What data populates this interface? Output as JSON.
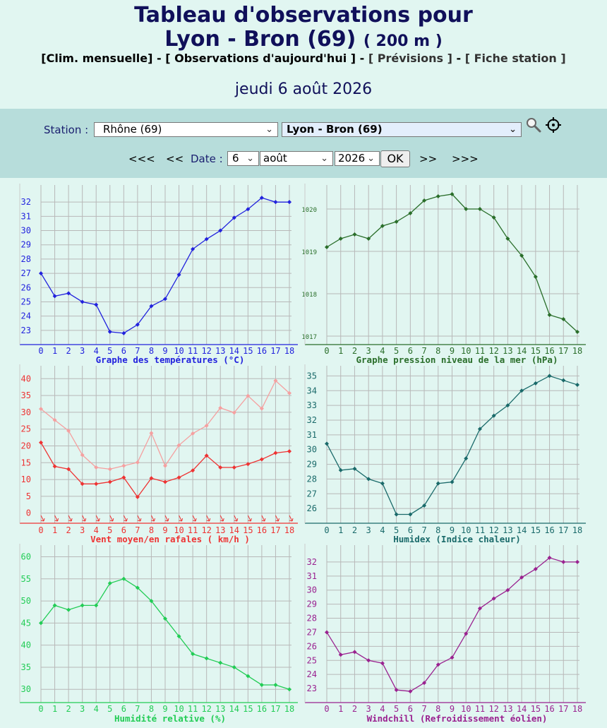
{
  "header": {
    "title_line1": "Tableau d'observations pour",
    "title_station": "Lyon - Bron (69)",
    "title_altitude": "( 200 m )",
    "links": [
      {
        "label": "[Clim. mensuelle]"
      },
      {
        "label": "[ Observations d'aujourd'hui ]"
      },
      {
        "label": "[ Prévisions ]"
      },
      {
        "label": "[ Fiche station ]"
      }
    ],
    "link_separator": "-",
    "date": "jeudi 6 août 2026"
  },
  "controls": {
    "station_label": "Station :",
    "department_select": "Rhône (69)",
    "station_select": "Lyon - Bron (69)",
    "search_icon": "magnifier-icon",
    "locate_icon": "crosshair-icon",
    "nav_prev_far": "<<<",
    "nav_prev": "<<",
    "date_label": "Date :",
    "day_select": "6",
    "month_select": "août",
    "year_select": "2026",
    "ok_label": "OK",
    "nav_next": ">>",
    "nav_next_far": ">>>"
  },
  "chart_data": [
    {
      "type": "line",
      "title": "Graphe des températures (°C)",
      "x": [
        0,
        1,
        2,
        3,
        4,
        5,
        6,
        7,
        8,
        9,
        10,
        11,
        12,
        13,
        14,
        15,
        16,
        17,
        18
      ],
      "ylim": [
        22,
        33
      ],
      "yticks": [
        23,
        24,
        25,
        26,
        27,
        28,
        29,
        30,
        31,
        32
      ],
      "series": [
        {
          "values": [
            27.0,
            25.4,
            25.6,
            25.0,
            24.8,
            22.9,
            22.8,
            23.4,
            24.7,
            25.2,
            26.9,
            28.7,
            29.4,
            30.0,
            30.9,
            31.5,
            32.3,
            32.0,
            32.0
          ]
        }
      ],
      "color": "#2222dd",
      "grid": true
    },
    {
      "type": "line",
      "title": "Graphe pression niveau de la mer (hPa)",
      "x": [
        0,
        1,
        2,
        3,
        4,
        5,
        6,
        7,
        8,
        9,
        10,
        11,
        12,
        13,
        14,
        15,
        16,
        17,
        18
      ],
      "ylim": [
        1016.8,
        1020.5
      ],
      "yticks": [
        1017,
        1018,
        1019,
        1020
      ],
      "series": [
        {
          "values": [
            1019.1,
            1019.3,
            1019.4,
            1019.3,
            1019.6,
            1019.7,
            1019.9,
            1020.2,
            1020.3,
            1020.35,
            1020.0,
            1020.0,
            1019.8,
            1019.3,
            1018.9,
            1018.4,
            1017.5,
            1017.4,
            1017.1
          ]
        }
      ],
      "color": "#2a6e2a",
      "grid": true
    },
    {
      "type": "line",
      "title": "Vent moyen/en rafales ( km/h )",
      "x": [
        0,
        1,
        2,
        3,
        4,
        5,
        6,
        7,
        8,
        9,
        10,
        11,
        12,
        13,
        14,
        15,
        16,
        17,
        18
      ],
      "ylim": [
        -3,
        43
      ],
      "yticks": [
        0,
        5,
        10,
        15,
        20,
        25,
        30,
        35,
        40
      ],
      "series": [
        {
          "values": [
            21,
            13.9,
            13.1,
            8.7,
            8.7,
            9.3,
            10.6,
            4.8,
            10.4,
            9.3,
            10.6,
            12.7,
            17.1,
            13.6,
            13.6,
            14.6,
            16.0,
            17.9,
            18.4
          ]
        },
        {
          "values": [
            31,
            27.7,
            24.5,
            17.3,
            13.6,
            13.1,
            14.1,
            15.1,
            23.8,
            14.1,
            20.2,
            23.7,
            26.0,
            31.3,
            29.9,
            34.9,
            31.1,
            39.4,
            35.7
          ]
        }
      ],
      "colors": [
        "#ee3333",
        "#f5a0a0"
      ],
      "wind_direction_icons": "arrow-icon",
      "grid": true
    },
    {
      "type": "line",
      "title": "Humidex (Indice chaleur)",
      "x": [
        0,
        1,
        2,
        3,
        4,
        5,
        6,
        7,
        8,
        9,
        10,
        11,
        12,
        13,
        14,
        15,
        16,
        17,
        18
      ],
      "ylim": [
        25,
        35.5
      ],
      "yticks": [
        26,
        27,
        28,
        29,
        30,
        31,
        32,
        33,
        34,
        35
      ],
      "series": [
        {
          "values": [
            30.4,
            28.6,
            28.7,
            28.0,
            27.7,
            25.6,
            25.6,
            26.2,
            27.7,
            27.8,
            29.4,
            31.4,
            32.3,
            33.0,
            34.0,
            34.5,
            35.0,
            34.7,
            34.4
          ]
        }
      ],
      "color": "#1a6a6a",
      "grid": true
    },
    {
      "type": "line",
      "title": "Humidité relative (%)",
      "x": [
        0,
        1,
        2,
        3,
        4,
        5,
        6,
        7,
        8,
        9,
        10,
        11,
        12,
        13,
        14,
        15,
        16,
        17,
        18
      ],
      "ylim": [
        27,
        62
      ],
      "yticks": [
        30,
        35,
        40,
        45,
        50,
        55,
        60
      ],
      "series": [
        {
          "values": [
            45,
            49,
            48,
            49,
            49,
            54,
            55,
            53,
            50,
            46,
            42,
            38,
            37,
            36,
            35,
            33,
            31,
            31,
            30
          ]
        }
      ],
      "color": "#22cc55",
      "grid": true
    },
    {
      "type": "line",
      "title": "Windchill (Refroidissement éolien)",
      "x": [
        0,
        1,
        2,
        3,
        4,
        5,
        6,
        7,
        8,
        9,
        10,
        11,
        12,
        13,
        14,
        15,
        16,
        17,
        18
      ],
      "ylim": [
        22,
        33
      ],
      "yticks": [
        23,
        24,
        25,
        26,
        27,
        28,
        29,
        30,
        31,
        32
      ],
      "series": [
        {
          "values": [
            27.0,
            25.4,
            25.6,
            25.0,
            24.8,
            22.9,
            22.8,
            23.4,
            24.7,
            25.2,
            26.9,
            28.7,
            29.4,
            30.0,
            30.9,
            31.5,
            32.3,
            32.0,
            32.0
          ]
        }
      ],
      "color": "#9a2290",
      "grid": true
    }
  ]
}
